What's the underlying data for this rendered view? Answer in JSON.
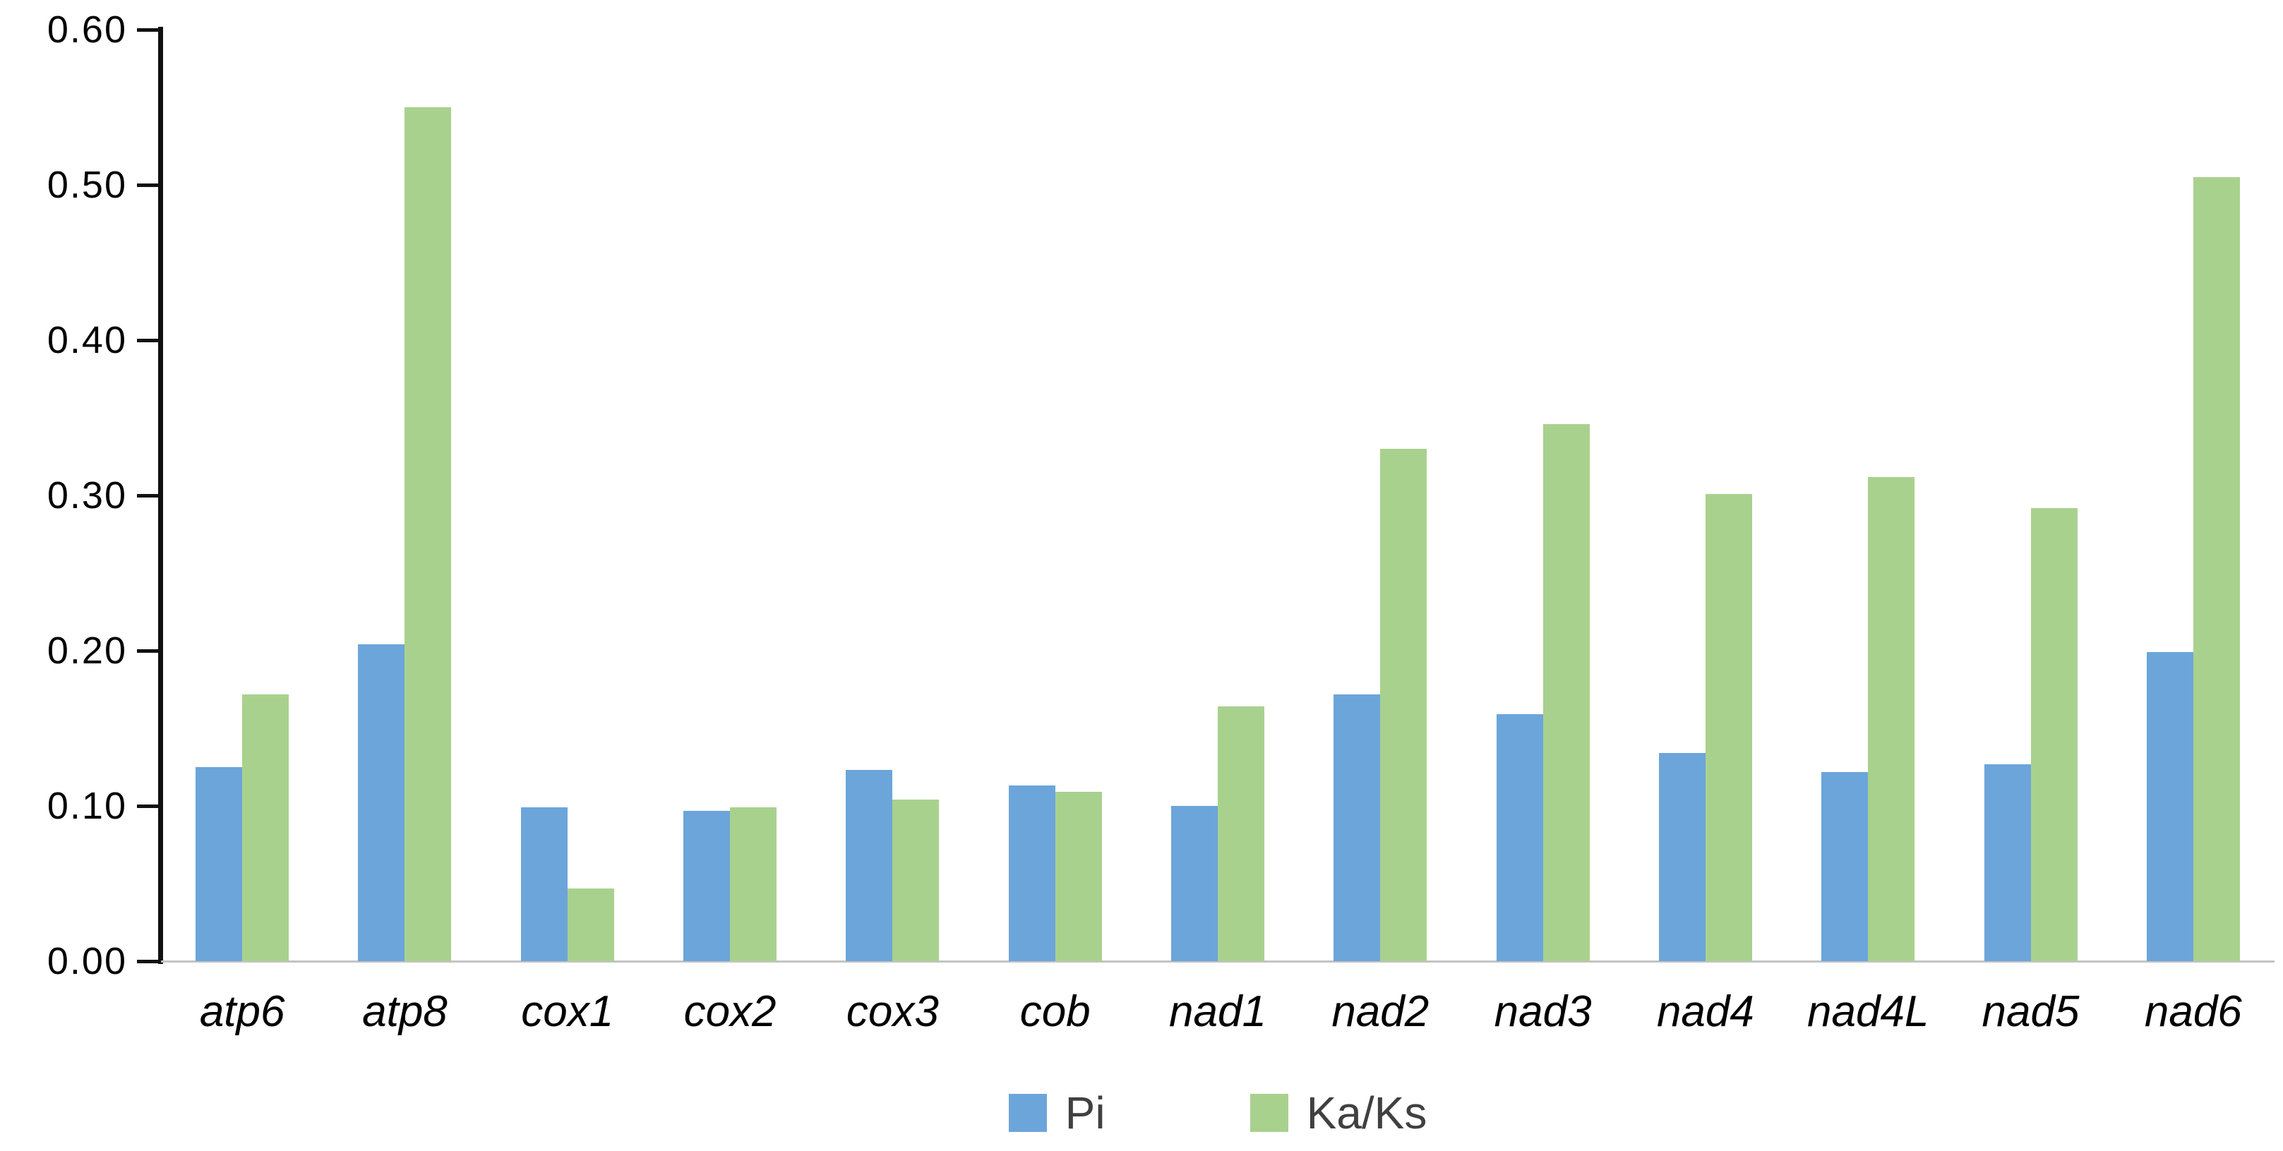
{
  "chart_data": {
    "type": "bar",
    "title": "",
    "xlabel": "",
    "ylabel": "",
    "categories": [
      "atp6",
      "atp8",
      "cox1",
      "cox2",
      "cox3",
      "cob",
      "nad1",
      "nad2",
      "nad3",
      "nad4",
      "nad4L",
      "nad5",
      "nad6"
    ],
    "series": [
      {
        "name": "Pi",
        "color": "#6CA5DA",
        "values": [
          0.125,
          0.204,
          0.099,
          0.097,
          0.123,
          0.113,
          0.1,
          0.172,
          0.159,
          0.134,
          0.122,
          0.127,
          0.199
        ]
      },
      {
        "name": "Ka/Ks",
        "color": "#A9D18E",
        "values": [
          0.172,
          0.55,
          0.047,
          0.099,
          0.104,
          0.109,
          0.164,
          0.33,
          0.346,
          0.301,
          0.312,
          0.292,
          0.505
        ]
      }
    ],
    "ylim": [
      0,
      0.6
    ],
    "yticks": [
      {
        "value": 0.0,
        "label": "0.00"
      },
      {
        "value": 0.1,
        "label": "0.10"
      },
      {
        "value": 0.2,
        "label": "0.20"
      },
      {
        "value": 0.3,
        "label": "0.30"
      },
      {
        "value": 0.4,
        "label": "0.40"
      },
      {
        "value": 0.5,
        "label": "0.50"
      },
      {
        "value": 0.6,
        "label": "0.60"
      }
    ],
    "grid": "off",
    "legend_position": "bottom-center",
    "colors": {
      "y_axis_line": "#111111",
      "x_axis_line": "#C3C3C3",
      "tick_label": "#000000",
      "category_label": "#000000",
      "legend_text": "#404040"
    }
  }
}
